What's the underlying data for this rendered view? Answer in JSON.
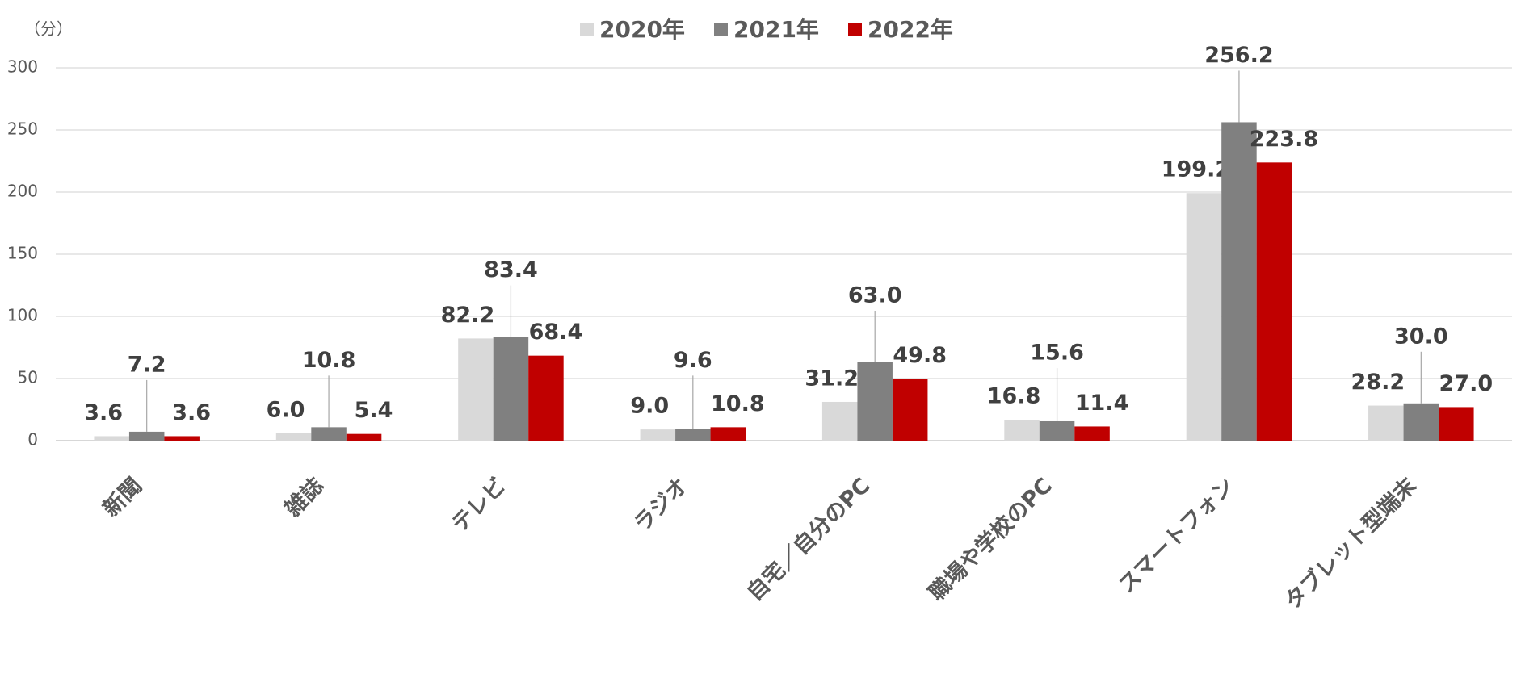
{
  "chart_data": {
    "type": "bar",
    "y_label": "（分）",
    "categories": [
      "新聞",
      "雑誌",
      "テレビ",
      "ラジオ",
      "自宅／自分のPC",
      "職場や学校のPC",
      "スマートフォン",
      "タブレット型端末"
    ],
    "series": [
      {
        "name": "2020年",
        "color": "#d9d9d9",
        "values": [
          3.6,
          6.0,
          82.2,
          9.0,
          31.2,
          16.8,
          199.2,
          28.2
        ],
        "value_labels": [
          "3.6",
          "6.0",
          "82.2",
          "9.0",
          "31.2",
          "16.8",
          "199.2",
          "28.2"
        ]
      },
      {
        "name": "2021年",
        "color": "#808080",
        "values": [
          7.2,
          10.8,
          83.4,
          9.6,
          63.0,
          15.6,
          256.2,
          30.0
        ],
        "value_labels": [
          "7.2",
          "10.8",
          "83.4",
          "9.6",
          "63.0",
          "15.6",
          "256.2",
          "30.0"
        ]
      },
      {
        "name": "2022年",
        "color": "#c00000",
        "values": [
          3.6,
          5.4,
          68.4,
          10.8,
          49.8,
          11.4,
          223.8,
          27.0
        ],
        "value_labels": [
          "3.6",
          "5.4",
          "68.4",
          "10.8",
          "49.8",
          "11.4",
          "223.8",
          "27.0"
        ]
      }
    ],
    "ylim": [
      0,
      300
    ],
    "yticks": [
      0,
      50,
      100,
      150,
      200,
      250,
      300
    ],
    "grid": true,
    "legend": "top"
  }
}
